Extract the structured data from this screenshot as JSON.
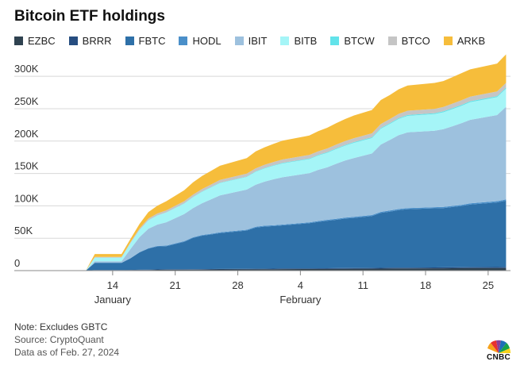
{
  "chart_data": {
    "type": "area",
    "stacked": true,
    "title": "Bitcoin ETF holdings",
    "xlabel": "",
    "ylabel": "",
    "ylim": [
      0,
      310000
    ],
    "y_ticks": [
      0,
      50000,
      100000,
      150000,
      200000,
      250000,
      300000
    ],
    "y_tick_labels": [
      "0",
      "50K",
      "100K",
      "150K",
      "200K",
      "250K",
      "300K"
    ],
    "x_ticks": [
      {
        "day": 14,
        "label": "14"
      },
      {
        "day": 21,
        "label": "21"
      },
      {
        "day": 28,
        "label": "28"
      },
      {
        "day": 35,
        "label": "4"
      },
      {
        "day": 42,
        "label": "11"
      },
      {
        "day": 49,
        "label": "18"
      },
      {
        "day": 56,
        "label": "25"
      }
    ],
    "month_labels": [
      {
        "day": 14,
        "label": "January"
      },
      {
        "day": 35,
        "label": "February"
      }
    ],
    "x": [
      11,
      12,
      15,
      16,
      17,
      18,
      19,
      20,
      22,
      23,
      24,
      25,
      26,
      29,
      30,
      31,
      32,
      33,
      36,
      37,
      38,
      39,
      40,
      41,
      43,
      44,
      45,
      46,
      47,
      50,
      51,
      52,
      53,
      54,
      57,
      58
    ],
    "series": [
      {
        "name": "EZBC",
        "color": "#2f4250",
        "values": [
          0,
          500,
          500,
          700,
          900,
          1000,
          1200,
          1300,
          1400,
          1500,
          1600,
          1700,
          1800,
          1900,
          2000,
          2100,
          2200,
          2300,
          2400,
          2500,
          2600,
          2700,
          2800,
          2900,
          3000,
          3100,
          3200,
          3300,
          3400,
          3500,
          3600,
          3700,
          3800,
          3900,
          4000,
          4100
        ]
      },
      {
        "name": "BRRR",
        "color": "#264d80",
        "values": [
          0,
          300,
          300,
          400,
          500,
          500,
          600,
          600,
          700,
          700,
          700,
          800,
          800,
          800,
          900,
          900,
          900,
          1000,
          1000,
          1000,
          1100,
          1100,
          1100,
          1200,
          1200,
          1200,
          1300,
          1300,
          1300,
          1400,
          1400,
          1400,
          1500,
          1500,
          1500,
          1600
        ]
      },
      {
        "name": "FBTC",
        "color": "#2e70a8",
        "values": [
          0,
          11200,
          11200,
          17900,
          26600,
          32500,
          35500,
          35800,
          42400,
          48300,
          51600,
          53300,
          55300,
          59200,
          63500,
          65000,
          65600,
          66500,
          69700,
          71700,
          73300,
          74600,
          76500,
          77300,
          80000,
          84800,
          86600,
          88800,
          90100,
          91300,
          91600,
          93000,
          94400,
          96500,
          99800,
          102300
        ]
      },
      {
        "name": "HODL",
        "color": "#4a8fc9",
        "values": [
          0,
          300,
          300,
          400,
          600,
          700,
          800,
          900,
          900,
          1000,
          1100,
          1100,
          1100,
          1200,
          1200,
          1300,
          1300,
          1300,
          1400,
          1400,
          1400,
          1500,
          1500,
          1500,
          1600,
          1600,
          1600,
          1700,
          1700,
          1700,
          1800,
          1800,
          1800,
          1900,
          1900,
          1900
        ]
      },
      {
        "name": "IBIT",
        "color": "#9dc1de",
        "values": [
          0,
          2000,
          2000,
          14000,
          23000,
          30000,
          33000,
          36000,
          42000,
          45000,
          49000,
          53000,
          57000,
          62000,
          65000,
          68000,
          71000,
          73000,
          76000,
          79000,
          81000,
          85000,
          88000,
          91000,
          95000,
          104000,
          109000,
          114000,
          117000,
          118000,
          120000,
          123000,
          126000,
          129000,
          133000,
          143000
        ]
      },
      {
        "name": "BITB",
        "color": "#a5f5f7",
        "values": [
          0,
          5700,
          5700,
          9000,
          11000,
          12800,
          13900,
          15000,
          16000,
          16900,
          17700,
          18400,
          19000,
          19500,
          20000,
          20500,
          20900,
          21300,
          21700,
          22100,
          22400,
          22700,
          23000,
          23400,
          23800,
          24200,
          24600,
          25000,
          25400,
          25700,
          26000,
          26400,
          26800,
          27200,
          27600,
          28000
        ]
      },
      {
        "name": "BTCW",
        "color": "#62e3ea",
        "values": [
          0,
          100,
          100,
          150,
          200,
          250,
          300,
          350,
          400,
          450,
          500,
          550,
          600,
          650,
          700,
          750,
          800,
          850,
          900,
          950,
          1000,
          1050,
          1100,
          1150,
          1200,
          1250,
          1300,
          1350,
          1400,
          1450,
          1500,
          1550,
          1600,
          1650,
          1700,
          1750
        ]
      },
      {
        "name": "BTCO",
        "color": "#c5c5c5",
        "values": [
          0,
          1000,
          1000,
          1500,
          2100,
          2600,
          2900,
          3100,
          3300,
          3500,
          3800,
          4000,
          4300,
          4500,
          4700,
          4900,
          5100,
          5300,
          5500,
          5600,
          5800,
          5900,
          6000,
          6100,
          6200,
          6300,
          6400,
          6500,
          6600,
          6700,
          6800,
          6900,
          7000,
          7100,
          7200,
          7300
        ]
      },
      {
        "name": "ARKB",
        "color": "#f6bd3b",
        "values": [
          0,
          4500,
          4500,
          5000,
          7000,
          10000,
          12000,
          14000,
          17000,
          19000,
          20000,
          21000,
          22000,
          24000,
          26000,
          27000,
          28000,
          29000,
          30000,
          31000,
          32000,
          33000,
          34000,
          35000,
          36000,
          37000,
          37000,
          38000,
          39000,
          40000,
          40000,
          41000,
          42000,
          42000,
          43000,
          44000
        ]
      }
    ]
  },
  "notes": {
    "note": "Note: Excludes GBTC",
    "source": "Source: CryptoQuant",
    "date": "Data as of Feb. 27, 2024"
  },
  "logo": {
    "text": "CNBC"
  }
}
